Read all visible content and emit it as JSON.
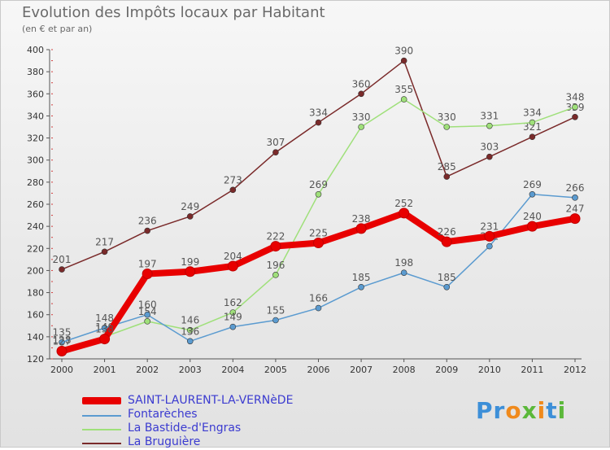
{
  "header": {
    "title": "Evolution des Impôts locaux par Habitant",
    "subtitle": "(en € et par an)"
  },
  "logo": {
    "text": "Proxiti"
  },
  "chart_data": {
    "type": "line",
    "x": [
      "2000",
      "2001",
      "2002",
      "2003",
      "2004",
      "2005",
      "2006",
      "2007",
      "2008",
      "2009",
      "2010",
      "2011",
      "2012"
    ],
    "ylim": [
      120,
      400
    ],
    "yticks": [
      120,
      140,
      160,
      180,
      200,
      220,
      240,
      260,
      280,
      300,
      320,
      340,
      360,
      380,
      400
    ],
    "grid": false,
    "legend_position": "bottom-left",
    "series": [
      {
        "name": "SAINT-LAURENT-LA-VERNèDE",
        "color": "#e80000",
        "width": 8,
        "values": [
          127,
          138,
          197,
          199,
          204,
          222,
          225,
          238,
          252,
          226,
          231,
          240,
          247
        ],
        "labels": [
          "127",
          "138",
          "197",
          "199",
          "204",
          "222",
          "225",
          "238",
          "252",
          "226",
          "231",
          "240",
          "247"
        ]
      },
      {
        "name": "Fontarèches",
        "color": "#5b9bd0",
        "width": 1.5,
        "values": [
          135,
          148,
          160,
          136,
          149,
          155,
          166,
          185,
          198,
          185,
          222,
          269,
          266
        ],
        "labels": [
          "135",
          "148",
          "160",
          "136",
          "149",
          "155",
          "166",
          "185",
          "198",
          "185",
          "222",
          "269",
          "266"
        ]
      },
      {
        "name": "La Bastide-d'Engras",
        "color": "#9fe07a",
        "width": 1.5,
        "values": [
          128,
          140,
          154,
          146,
          162,
          196,
          269,
          330,
          355,
          330,
          331,
          334,
          348
        ],
        "labels": [
          "128",
          "140",
          "154",
          "146",
          "162",
          "196",
          "269",
          "330",
          "355",
          "330",
          "331",
          "334",
          "348"
        ]
      },
      {
        "name": "La Bruguière",
        "color": "#7a2a2a",
        "width": 1.5,
        "values": [
          201,
          217,
          236,
          249,
          273,
          307,
          334,
          360,
          390,
          285,
          303,
          321,
          339
        ],
        "labels": [
          "201",
          "217",
          "236",
          "249",
          "273",
          "307",
          "334",
          "360",
          "390",
          "285",
          "303",
          "321",
          "339"
        ]
      }
    ]
  }
}
